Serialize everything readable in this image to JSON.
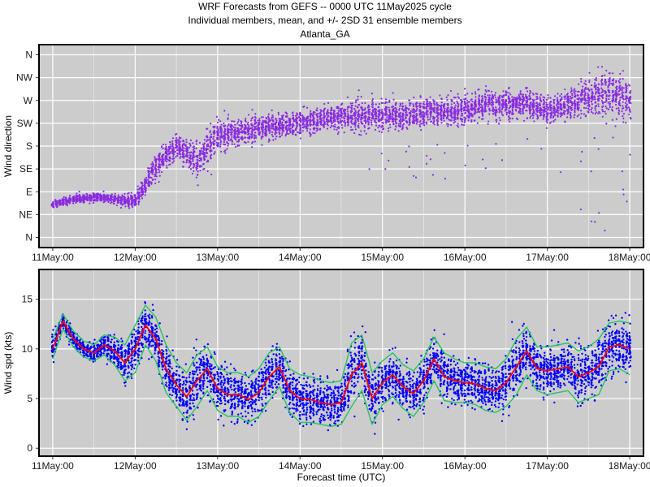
{
  "header": {
    "line1": "WRF Forecasts from GEFS --  0000 UTC 11May2025  cycle",
    "line2": "Individual members, mean, and +/- 2SD    31 ensemble members",
    "line3": "Atlanta_GA"
  },
  "colors": {
    "panel_bg": "#cccccc",
    "grid": "#ffffff",
    "direction_points": "#8a2be2",
    "speed_points": "#0000ff",
    "mean_line": "#ff0000",
    "sd_lines": "#22c55e"
  },
  "chart_data": [
    {
      "type": "scatter",
      "ylabel": "Wind direction",
      "xlabel": "",
      "x_ticks": [
        "11May:00",
        "12May:00",
        "13May:00",
        "14May:00",
        "15May:00",
        "16May:00",
        "17May:00",
        "18May:00"
      ],
      "xlim_hours": [
        -4,
        172
      ],
      "y_ticks": [
        "N",
        "NE",
        "E",
        "SE",
        "S",
        "SW",
        "W",
        "NW",
        "N"
      ],
      "ylim_degrees": [
        -20,
        380
      ],
      "grid": true,
      "members": 31,
      "series": [
        {
          "kind": "direction_median",
          "x": [
            0,
            6,
            12,
            18,
            24,
            30,
            36,
            42,
            48,
            54,
            60,
            66,
            72,
            78,
            84,
            90,
            96,
            102,
            108,
            114,
            120,
            126,
            132,
            138,
            144,
            150,
            156,
            162,
            168
          ],
          "y": [
            65,
            75,
            80,
            75,
            70,
            140,
            180,
            150,
            200,
            210,
            215,
            220,
            225,
            232,
            240,
            238,
            240,
            240,
            245,
            250,
            250,
            260,
            262,
            265,
            250,
            262,
            275,
            285,
            270
          ]
        },
        {
          "kind": "direction_spread",
          "x": [
            0,
            6,
            12,
            18,
            24,
            30,
            36,
            42,
            48,
            54,
            60,
            66,
            72,
            78,
            84,
            90,
            96,
            102,
            108,
            114,
            120,
            126,
            132,
            138,
            144,
            150,
            156,
            162,
            168
          ],
          "y": [
            8,
            8,
            8,
            10,
            15,
            30,
            25,
            35,
            35,
            25,
            25,
            25,
            25,
            25,
            30,
            30,
            30,
            30,
            30,
            30,
            30,
            30,
            30,
            30,
            30,
            30,
            35,
            55,
            40
          ]
        }
      ]
    },
    {
      "type": "line",
      "ylabel": "Wind spd (kts)",
      "xlabel": "Forecast time (UTC)",
      "x_ticks": [
        "11May:00",
        "12May:00",
        "13May:00",
        "14May:00",
        "15May:00",
        "16May:00",
        "17May:00",
        "18May:00"
      ],
      "xlim_hours": [
        -4,
        172
      ],
      "y_ticks": [
        "0",
        "5",
        "10",
        "15"
      ],
      "ylim": [
        -0.8,
        18
      ],
      "grid": true,
      "series": [
        {
          "name": "mean",
          "x": [
            0,
            3,
            6,
            9,
            12,
            15,
            18,
            21,
            24,
            27,
            30,
            33,
            36,
            39,
            42,
            45,
            48,
            51,
            54,
            57,
            60,
            63,
            66,
            69,
            72,
            75,
            78,
            81,
            84,
            87,
            90,
            93,
            96,
            99,
            102,
            105,
            108,
            111,
            114,
            117,
            120,
            123,
            126,
            129,
            132,
            135,
            138,
            141,
            144,
            147,
            150,
            153,
            156,
            159,
            162,
            165,
            168
          ],
          "y": [
            10,
            12.8,
            11,
            10,
            9.6,
            10.4,
            9.8,
            8.6,
            10.0,
            12.4,
            11.0,
            8.0,
            6.4,
            5.2,
            6.8,
            8.0,
            6.0,
            5.4,
            5.4,
            4.9,
            5.6,
            7.2,
            8.2,
            5.8,
            5.0,
            4.9,
            4.6,
            4.4,
            4.6,
            7.4,
            8.6,
            5.0,
            6.6,
            7.4,
            6.2,
            5.5,
            6.8,
            9.0,
            7.2,
            6.8,
            6.6,
            6.5,
            6.0,
            5.8,
            6.6,
            8.2,
            9.8,
            8.0,
            7.8,
            8.0,
            8.2,
            7.2,
            7.6,
            8.2,
            10.2,
            10.4,
            10.0
          ]
        },
        {
          "name": "mean +2SD",
          "x": [
            0,
            3,
            6,
            9,
            12,
            15,
            18,
            21,
            24,
            27,
            30,
            33,
            36,
            39,
            42,
            45,
            48,
            51,
            54,
            57,
            60,
            63,
            66,
            69,
            72,
            75,
            78,
            81,
            84,
            87,
            90,
            93,
            96,
            99,
            102,
            105,
            108,
            111,
            114,
            117,
            120,
            123,
            126,
            129,
            132,
            135,
            138,
            141,
            144,
            147,
            150,
            153,
            156,
            159,
            162,
            165,
            168
          ],
          "y": [
            11,
            13.5,
            11.8,
            10.8,
            10.4,
            11.4,
            11.2,
            10.4,
            12.4,
            14.4,
            13.2,
            10.4,
            8.6,
            7.6,
            9.4,
            10.2,
            8.2,
            7.6,
            7.6,
            7.2,
            8.0,
            9.6,
            10.2,
            8.0,
            7.4,
            7.2,
            6.8,
            6.6,
            6.8,
            10.6,
            11.4,
            7.6,
            8.8,
            9.6,
            8.4,
            7.8,
            9.0,
            11.2,
            9.6,
            9.0,
            8.6,
            8.6,
            8.2,
            8.0,
            9.0,
            11.0,
            12.2,
            10.2,
            10.2,
            10.4,
            10.6,
            9.8,
            10.2,
            11.0,
            12.6,
            12.8,
            12.6
          ]
        },
        {
          "name": "mean -2SD",
          "x": [
            0,
            3,
            6,
            9,
            12,
            15,
            18,
            21,
            24,
            27,
            30,
            33,
            36,
            39,
            42,
            45,
            48,
            51,
            54,
            57,
            60,
            63,
            66,
            69,
            72,
            75,
            78,
            81,
            84,
            87,
            90,
            93,
            96,
            99,
            102,
            105,
            108,
            111,
            114,
            117,
            120,
            123,
            126,
            129,
            132,
            135,
            138,
            141,
            144,
            147,
            150,
            153,
            156,
            159,
            162,
            165,
            168
          ],
          "y": [
            9,
            12.0,
            10.2,
            9.2,
            8.8,
            9.4,
            8.4,
            6.8,
            7.6,
            10.4,
            8.8,
            5.6,
            4.2,
            2.8,
            4.2,
            5.8,
            3.8,
            3.2,
            3.2,
            2.6,
            3.2,
            4.8,
            6.2,
            3.6,
            2.6,
            2.6,
            2.4,
            2.2,
            2.4,
            4.2,
            5.8,
            2.4,
            4.4,
            5.2,
            4.0,
            3.2,
            4.6,
            6.8,
            4.8,
            4.6,
            4.6,
            4.4,
            3.8,
            3.6,
            4.2,
            5.4,
            7.4,
            5.8,
            5.4,
            5.6,
            5.8,
            4.6,
            5.0,
            5.4,
            7.8,
            8.0,
            7.4
          ]
        },
        {
          "name": "members",
          "kind": "member_scatter",
          "count": 31
        }
      ]
    }
  ]
}
